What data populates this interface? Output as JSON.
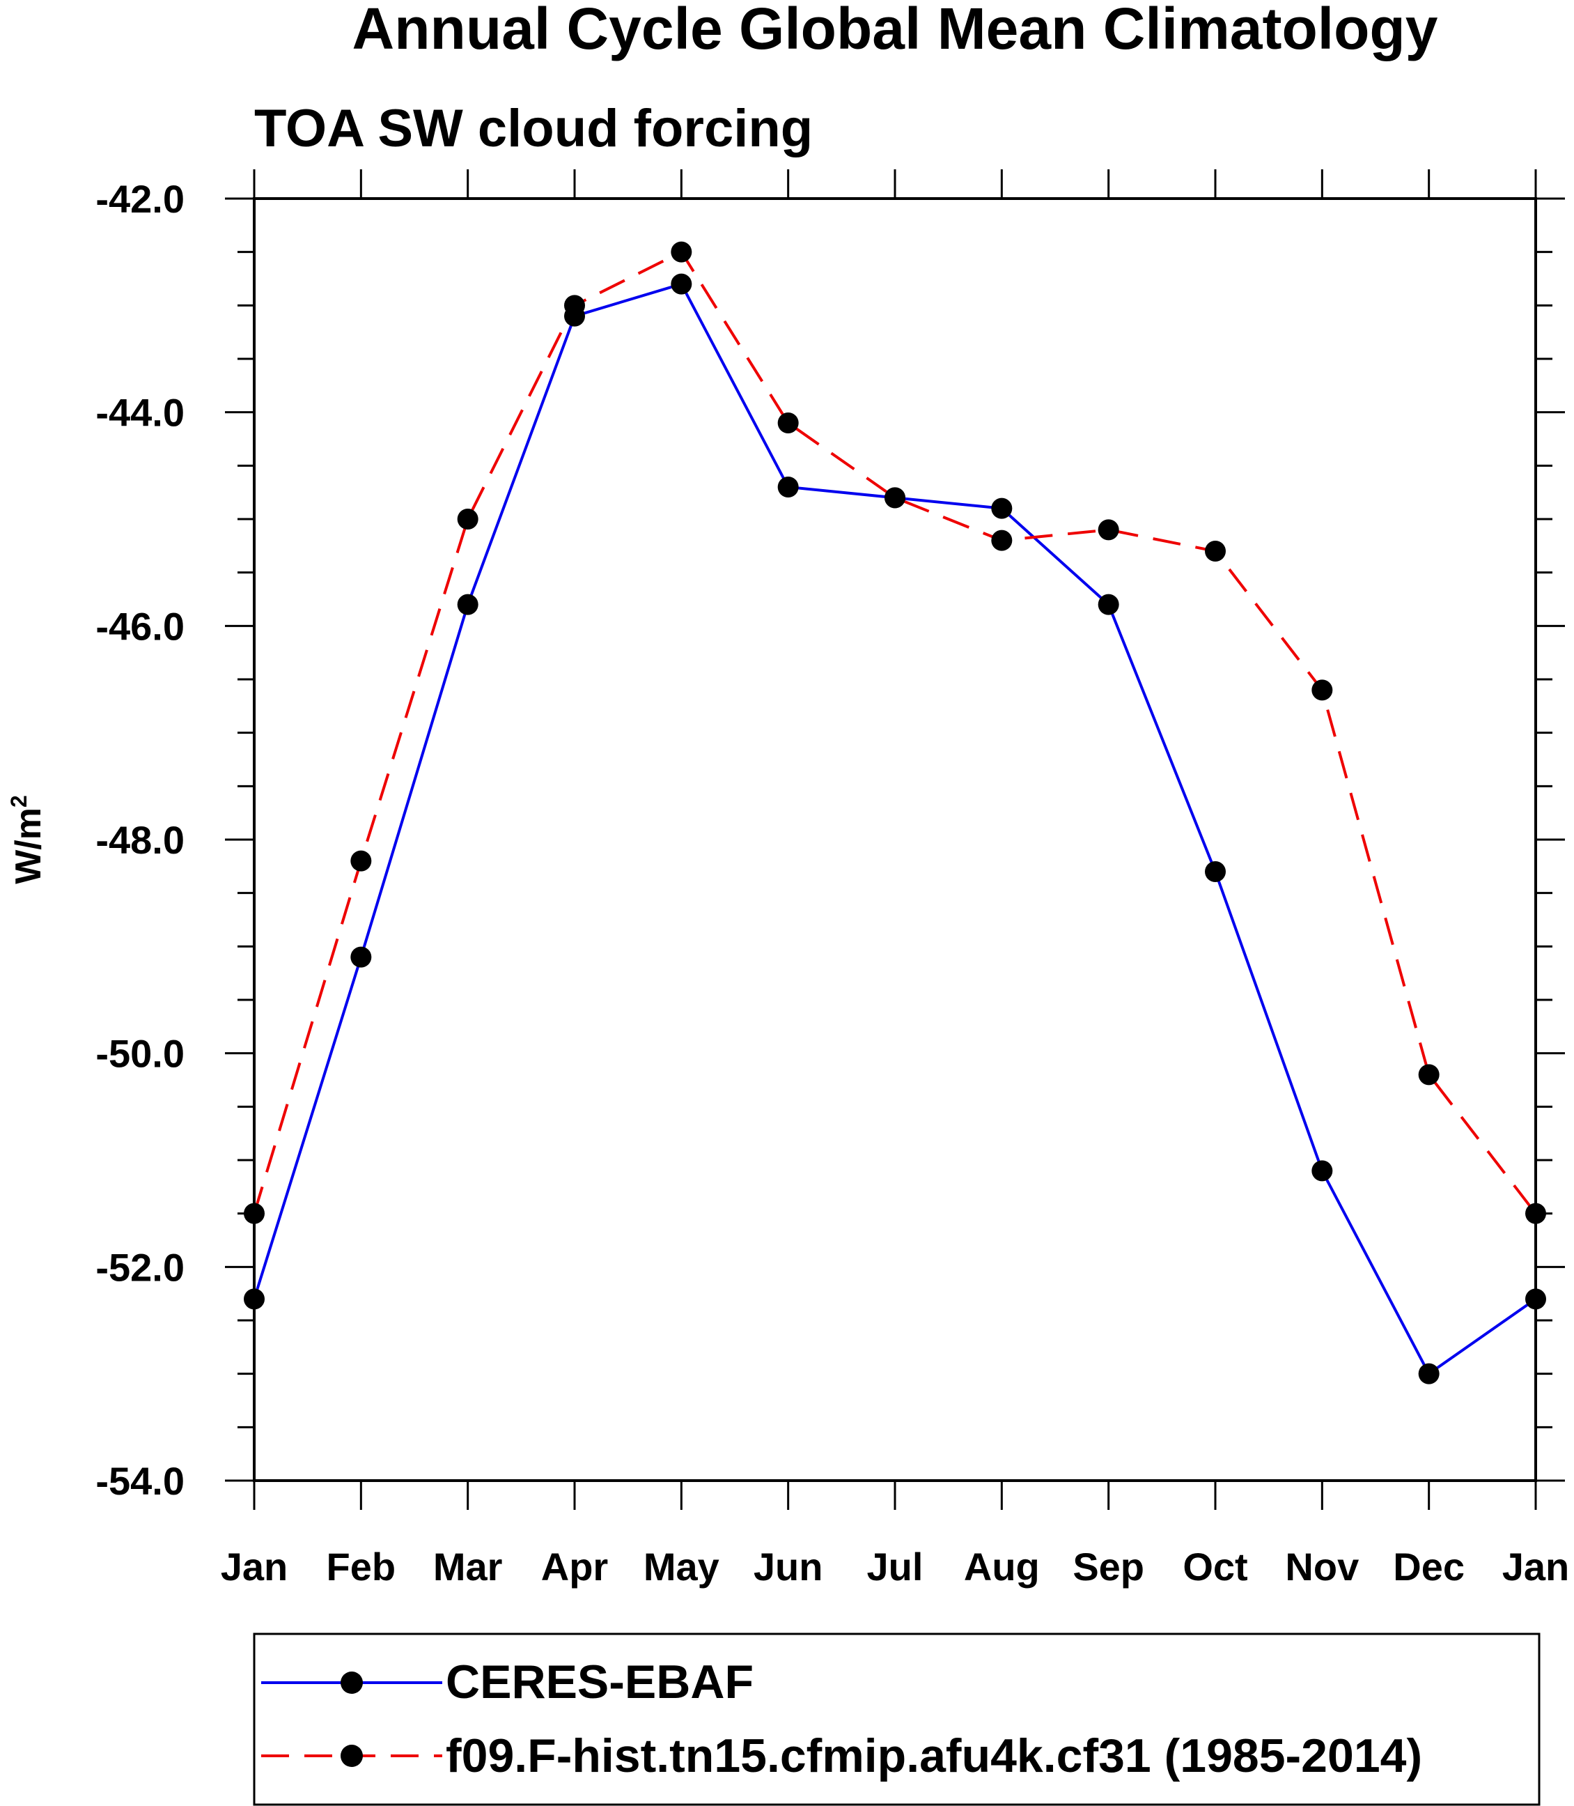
{
  "chart_data": {
    "type": "line",
    "title": "Annual Cycle Global Mean Climatology",
    "subtitle": "TOA SW cloud forcing",
    "xlabel": "",
    "ylabel": "W/m",
    "ylabel_superscript": "2",
    "categories": [
      "Jan",
      "Feb",
      "Mar",
      "Apr",
      "May",
      "Jun",
      "Jul",
      "Aug",
      "Sep",
      "Oct",
      "Nov",
      "Dec",
      "Jan"
    ],
    "ylim": [
      -54.0,
      -42.0
    ],
    "yticks": [
      -42.0,
      -44.0,
      -46.0,
      -48.0,
      -50.0,
      -52.0,
      -54.0
    ],
    "ytick_labels": [
      "-42.0",
      "-44.0",
      "-46.0",
      "-48.0",
      "-50.0",
      "-52.0",
      "-54.0"
    ],
    "legend_position": "bottom",
    "series": [
      {
        "name": "CERES-EBAF",
        "color": "#0000ee",
        "dash": "solid",
        "values": [
          -52.3,
          -49.1,
          -45.8,
          -43.1,
          -42.8,
          -44.7,
          -44.8,
          -44.9,
          -45.8,
          -48.3,
          -51.1,
          -53.0,
          -52.3
        ]
      },
      {
        "name": "f09.F-hist.tn15.cfmip.afu4k.cf31 (1985-2014)",
        "color": "#ee0000",
        "dash": "dashed",
        "values": [
          -51.5,
          -48.2,
          -45.0,
          -43.0,
          -42.5,
          -44.1,
          -44.8,
          -45.2,
          -45.1,
          -45.3,
          -46.6,
          -50.2,
          -51.5
        ]
      }
    ]
  }
}
